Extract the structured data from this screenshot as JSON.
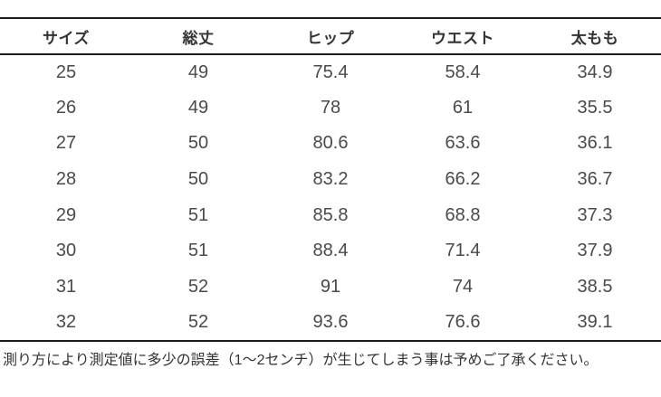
{
  "table": {
    "columns": [
      "サイズ",
      "総丈",
      "ヒップ",
      "ウエスト",
      "太もも"
    ],
    "rows": [
      [
        "25",
        "49",
        "75.4",
        "58.4",
        "34.9"
      ],
      [
        "26",
        "49",
        "78",
        "61",
        "35.5"
      ],
      [
        "27",
        "50",
        "80.6",
        "63.6",
        "36.1"
      ],
      [
        "28",
        "50",
        "83.2",
        "66.2",
        "36.7"
      ],
      [
        "29",
        "51",
        "85.8",
        "68.8",
        "37.3"
      ],
      [
        "30",
        "51",
        "88.4",
        "71.4",
        "37.9"
      ],
      [
        "31",
        "52",
        "91",
        "74",
        "38.5"
      ],
      [
        "32",
        "52",
        "93.6",
        "76.6",
        "39.1"
      ]
    ]
  },
  "footer": {
    "note": "測り方により測定値に多少の誤差（1～2センチ）が生じてしまう事は予めご了承ください。"
  },
  "colors": {
    "line": "#1a1a1a",
    "header_text": "#333333",
    "cell_text": "#4a4a4a",
    "footer_text": "#333333",
    "background": "#ffffff"
  }
}
